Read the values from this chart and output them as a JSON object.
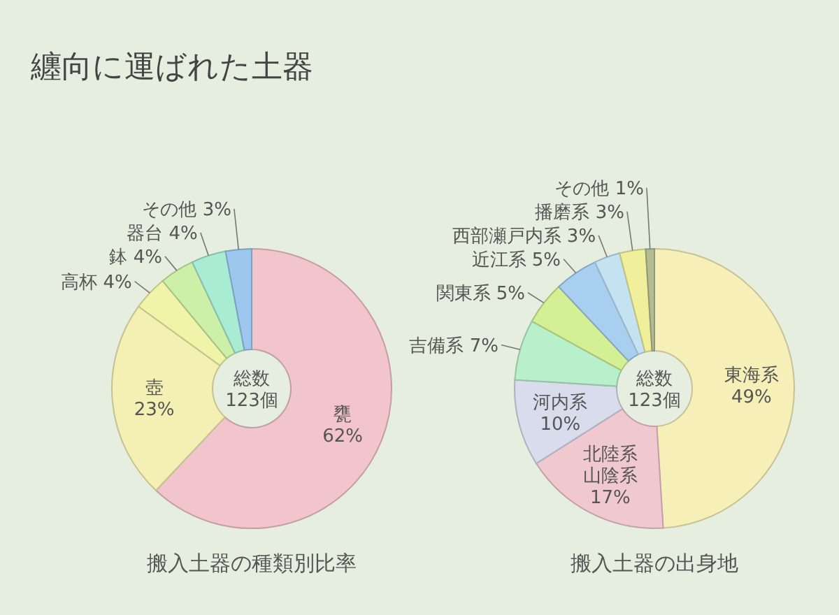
{
  "chart_data": [
    {
      "type": "donut",
      "title": "纏向に運ばれた土器",
      "subtitle": "搬入土器の種類別比率",
      "annotations": [
        "総数\n123個"
      ],
      "categories": [
        "甕",
        "壺",
        "高杯",
        "鉢",
        "器台",
        "その他"
      ],
      "values": [
        62,
        23,
        4,
        4,
        4,
        3
      ],
      "value_labels": [
        "62%",
        "23%",
        "4%",
        "4%",
        "4%",
        "3%"
      ],
      "colors": [
        "#f2c4cc",
        "#f4f0b4",
        "#f0f4a8",
        "#cdf0a8",
        "#a8ecd4",
        "#9cc8f0"
      ]
    },
    {
      "type": "donut",
      "subtitle": "搬入土器の出身地",
      "annotations": [
        "総数\n123個"
      ],
      "categories": [
        "東海系",
        "北陸系山陰系",
        "河内系",
        "吉備系",
        "関東系",
        "近江系",
        "西部瀬戸内系",
        "播磨系",
        "その他"
      ],
      "values": [
        49,
        17,
        10,
        7,
        5,
        5,
        3,
        3,
        1
      ],
      "value_labels": [
        "49%",
        "17%",
        "10%",
        "7%",
        "5%",
        "5%",
        "3%",
        "3%",
        "1%"
      ],
      "colors": [
        "#f6f0b8",
        "#f0c8d0",
        "#d8dcec",
        "#b8f0cc",
        "#d4f094",
        "#a8cef0",
        "#c4e2f2",
        "#f0f09c",
        "#b4bc94"
      ]
    }
  ]
}
